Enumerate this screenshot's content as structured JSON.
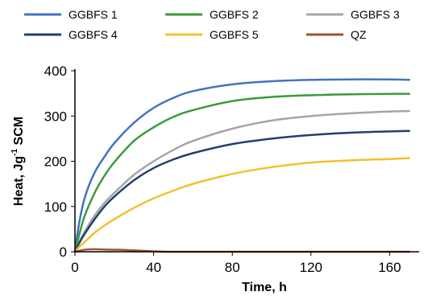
{
  "chart_data": {
    "type": "line",
    "title": "",
    "xlabel": "Time, h",
    "ylabel_main": "Heat, Jg",
    "ylabel_sup": "-1",
    "ylabel_tail": " SCM",
    "xlim": [
      0,
      175
    ],
    "ylim": [
      0,
      400
    ],
    "xticks": [
      0,
      40,
      80,
      120,
      160
    ],
    "yticks": [
      0,
      100,
      200,
      300,
      400
    ],
    "grid": false,
    "legend": "top",
    "series": [
      {
        "name": "GGBFS 1",
        "color": "#4472C4",
        "x": [
          0,
          2,
          5,
          10,
          15,
          20,
          30,
          40,
          50,
          60,
          80,
          100,
          120,
          140,
          160,
          170
        ],
        "y": [
          0,
          60,
          120,
          175,
          210,
          240,
          285,
          318,
          340,
          355,
          370,
          377,
          380,
          381,
          381,
          380
        ]
      },
      {
        "name": "GGBFS 2",
        "color": "#3A9B3A",
        "x": [
          0,
          2,
          5,
          10,
          15,
          20,
          30,
          40,
          50,
          60,
          80,
          100,
          120,
          140,
          160,
          170
        ],
        "y": [
          0,
          35,
          80,
          130,
          168,
          198,
          245,
          275,
          298,
          313,
          333,
          342,
          346,
          348,
          349,
          349
        ]
      },
      {
        "name": "GGBFS 3",
        "color": "#A5A5A5",
        "x": [
          0,
          2,
          5,
          10,
          15,
          20,
          30,
          40,
          50,
          60,
          80,
          100,
          120,
          140,
          160,
          170
        ],
        "y": [
          0,
          20,
          45,
          80,
          108,
          130,
          170,
          200,
          225,
          245,
          272,
          290,
          300,
          306,
          310,
          311
        ]
      },
      {
        "name": "GGBFS 4",
        "color": "#243F6E",
        "x": [
          0,
          2,
          5,
          10,
          15,
          20,
          30,
          40,
          50,
          60,
          80,
          100,
          120,
          140,
          160,
          170
        ],
        "y": [
          0,
          18,
          40,
          72,
          100,
          122,
          158,
          185,
          204,
          218,
          238,
          250,
          258,
          263,
          266,
          267
        ]
      },
      {
        "name": "GGBFS 5",
        "color": "#F2C12E",
        "x": [
          0,
          2,
          5,
          10,
          15,
          20,
          30,
          40,
          50,
          60,
          80,
          100,
          120,
          140,
          160,
          170
        ],
        "y": [
          0,
          10,
          22,
          42,
          58,
          72,
          97,
          118,
          135,
          150,
          172,
          187,
          197,
          202,
          205,
          207
        ]
      },
      {
        "name": "QZ",
        "color": "#A0522D",
        "x": [
          0,
          3,
          6,
          10,
          15,
          20,
          25,
          30,
          35,
          40,
          45,
          50,
          60,
          80,
          100,
          120,
          140,
          160,
          170
        ],
        "y": [
          0,
          3,
          5,
          5.5,
          5,
          4.5,
          4,
          3,
          2,
          1,
          0.3,
          0,
          0,
          0,
          0,
          0,
          0,
          0,
          0
        ]
      }
    ]
  }
}
